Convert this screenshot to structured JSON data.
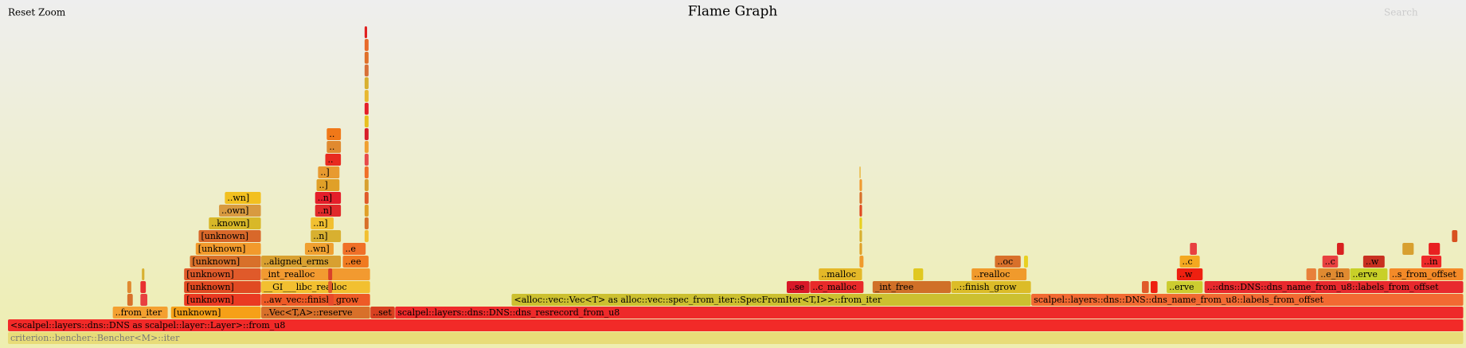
{
  "ui": {
    "reset_zoom": "Reset Zoom",
    "search": "Search"
  },
  "chart_data": {
    "type": "flame",
    "title": "Flame Graph",
    "frames": [
      {
        "depth": 0,
        "start": 0,
        "width": 100,
        "label": "criterion::bencher::Bencher<M>::iter",
        "color": "#e8dc78"
      },
      {
        "depth": 1,
        "start": 0,
        "width": 100,
        "label": "<scalpel::layers::dns::DNS as scalpel::layer::Layer>::from_u8",
        "color": "#f22a28"
      },
      {
        "depth": 2,
        "start": 7.2,
        "width": 3.8,
        "label": "..from_iter",
        "color": "#f4a030"
      },
      {
        "depth": 2,
        "start": 11.2,
        "width": 6.2,
        "label": "[unknown]",
        "color": "#f6a018"
      },
      {
        "depth": 2,
        "start": 17.4,
        "width": 7.5,
        "label": "..Vec<T,A>::reserve",
        "color": "#d8702a"
      },
      {
        "depth": 2,
        "start": 24.9,
        "width": 1.7,
        "label": "..set",
        "color": "#d84020"
      },
      {
        "depth": 2,
        "start": 26.6,
        "width": 73.4,
        "label": "scalpel::layers::dns::DNS::dns_resrecord_from_u8",
        "color": "#ee2a2a"
      },
      {
        "depth": 3,
        "start": 12.1,
        "width": 5.3,
        "label": "[unknown]",
        "color": "#ea3a22"
      },
      {
        "depth": 3,
        "start": 17.4,
        "width": 7.5,
        "label": "..aw_vec::finish_grow",
        "color": "#ee5a26"
      },
      {
        "depth": 3,
        "start": 34.6,
        "width": 35.7,
        "label": "<alloc::vec::Vec<T> as alloc::vec::spec_from_iter::SpecFromIter<T,I>>::from_iter",
        "color": "#ccc030"
      },
      {
        "depth": 3,
        "start": 70.3,
        "width": 29.7,
        "label": "scalpel::layers::dns::DNS::dns_name_from_u8::labels_from_offset",
        "color": "#f26a32"
      },
      {
        "depth": 4,
        "start": 12.1,
        "width": 5.3,
        "label": "[unknown]",
        "color": "#e04a22"
      },
      {
        "depth": 4,
        "start": 17.4,
        "width": 7.5,
        "label": "__GI___libc_realloc",
        "color": "#f2c030"
      },
      {
        "depth": 4,
        "start": 53.5,
        "width": 1.6,
        "label": "..se",
        "color": "#d81828"
      },
      {
        "depth": 4,
        "start": 55.1,
        "width": 3.7,
        "label": "..c_malloc",
        "color": "#e82a2a"
      },
      {
        "depth": 4,
        "start": 59.4,
        "width": 5.4,
        "label": "_int_free",
        "color": "#d07028"
      },
      {
        "depth": 4,
        "start": 64.8,
        "width": 5.5,
        "label": "..::finish_grow",
        "color": "#dcbc28"
      },
      {
        "depth": 4,
        "start": 79.6,
        "width": 2.5,
        "label": "..erve",
        "color": "#cccc30"
      },
      {
        "depth": 4,
        "start": 82.2,
        "width": 17.8,
        "label": "..::dns::DNS::dns_name_from_u8::labels_from_offset",
        "color": "#e82a2e"
      },
      {
        "depth": 5,
        "start": 12.1,
        "width": 5.3,
        "label": "[unknown]",
        "color": "#e05a2a"
      },
      {
        "depth": 5,
        "start": 17.4,
        "width": 7.5,
        "label": "_int_realloc",
        "color": "#f29a30"
      },
      {
        "depth": 5,
        "start": 55.7,
        "width": 3.0,
        "label": "..malloc",
        "color": "#e4b828"
      },
      {
        "depth": 5,
        "start": 66.2,
        "width": 3.8,
        "label": "..realloc",
        "color": "#f09a2c"
      },
      {
        "depth": 5,
        "start": 80.3,
        "width": 1.8,
        "label": "..w",
        "color": "#ee2010"
      },
      {
        "depth": 5,
        "start": 90.0,
        "width": 2.2,
        "label": "..e_in",
        "color": "#e08a30"
      },
      {
        "depth": 5,
        "start": 92.2,
        "width": 2.6,
        "label": "..erve",
        "color": "#c8d028"
      },
      {
        "depth": 5,
        "start": 94.9,
        "width": 5.1,
        "label": "..s_from_offset",
        "color": "#f48a28"
      },
      {
        "depth": 6,
        "start": 12.5,
        "width": 4.9,
        "label": "[unknown]",
        "color": "#d8702a"
      },
      {
        "depth": 6,
        "start": 17.4,
        "width": 5.5,
        "label": "..aligned_erms",
        "color": "#d8a030"
      },
      {
        "depth": 6,
        "start": 23.0,
        "width": 1.8,
        "label": "..ee",
        "color": "#f07a20"
      },
      {
        "depth": 6,
        "start": 67.8,
        "width": 1.8,
        "label": "..oc",
        "color": "#d8702a"
      },
      {
        "depth": 6,
        "start": 80.5,
        "width": 1.4,
        "label": "..c",
        "color": "#f4a820"
      },
      {
        "depth": 6,
        "start": 90.3,
        "width": 1.1,
        "label": "..c",
        "color": "#e84040"
      },
      {
        "depth": 6,
        "start": 93.1,
        "width": 1.5,
        "label": "..w",
        "color": "#c83020"
      },
      {
        "depth": 6,
        "start": 97.1,
        "width": 1.4,
        "label": "..in",
        "color": "#ee2a2a"
      },
      {
        "depth": 7,
        "start": 12.9,
        "width": 4.5,
        "label": "[unknown]",
        "color": "#f29a2c"
      },
      {
        "depth": 7,
        "start": 20.4,
        "width": 2.0,
        "label": "..wn]",
        "color": "#f0a030"
      },
      {
        "depth": 7,
        "start": 23.0,
        "width": 1.6,
        "label": "..e",
        "color": "#f07028"
      },
      {
        "depth": 8,
        "start": 13.1,
        "width": 4.3,
        "label": "[unknown]",
        "color": "#d8682a"
      },
      {
        "depth": 8,
        "start": 20.8,
        "width": 2.1,
        "label": "..n]",
        "color": "#d8b030"
      },
      {
        "depth": 9,
        "start": 13.8,
        "width": 3.6,
        "label": "..known]",
        "color": "#d8b828"
      },
      {
        "depth": 9,
        "start": 20.8,
        "width": 1.6,
        "label": "..n]",
        "color": "#f2c030"
      },
      {
        "depth": 10,
        "start": 14.5,
        "width": 2.9,
        "label": "..own]",
        "color": "#d89a40"
      },
      {
        "depth": 10,
        "start": 21.1,
        "width": 1.8,
        "label": "..n]",
        "color": "#e02a2a"
      },
      {
        "depth": 11,
        "start": 14.9,
        "width": 2.5,
        "label": "..wn]",
        "color": "#f2c020"
      },
      {
        "depth": 11,
        "start": 21.1,
        "width": 1.8,
        "label": "..n]",
        "color": "#e41e2a"
      },
      {
        "depth": 12,
        "start": 21.2,
        "width": 1.6,
        "label": "..]",
        "color": "#e0a028"
      },
      {
        "depth": 13,
        "start": 21.3,
        "width": 1.5,
        "label": "..]",
        "color": "#e89a30"
      },
      {
        "depth": 14,
        "start": 21.8,
        "width": 1.1,
        "label": "..",
        "color": "#e82a20"
      },
      {
        "depth": 15,
        "start": 21.9,
        "width": 1.0,
        "label": "..",
        "color": "#e08a30"
      },
      {
        "depth": 16,
        "start": 21.9,
        "width": 1.0,
        "label": "..",
        "color": "#f07818"
      },
      {
        "depth": 8,
        "start": 24.5,
        "width": 0.3,
        "label": null,
        "color": "#f2c030"
      },
      {
        "depth": 9,
        "start": 24.5,
        "width": 0.3,
        "label": null,
        "color": "#d8702a"
      },
      {
        "depth": 10,
        "start": 24.5,
        "width": 0.3,
        "label": null,
        "color": "#e0a028"
      },
      {
        "depth": 11,
        "start": 24.5,
        "width": 0.3,
        "label": null,
        "color": "#e05a2a"
      },
      {
        "depth": 12,
        "start": 24.5,
        "width": 0.3,
        "label": null,
        "color": "#d8a030"
      },
      {
        "depth": 13,
        "start": 24.5,
        "width": 0.3,
        "label": null,
        "color": "#f07028"
      },
      {
        "depth": 14,
        "start": 24.5,
        "width": 0.3,
        "label": null,
        "color": "#e84a4a"
      },
      {
        "depth": 15,
        "start": 24.5,
        "width": 0.3,
        "label": null,
        "color": "#f0a030"
      },
      {
        "depth": 16,
        "start": 24.5,
        "width": 0.3,
        "label": null,
        "color": "#d81e28"
      },
      {
        "depth": 17,
        "start": 24.5,
        "width": 0.3,
        "label": null,
        "color": "#e8c020"
      },
      {
        "depth": 18,
        "start": 24.5,
        "width": 0.3,
        "label": null,
        "color": "#e41e2a"
      },
      {
        "depth": 19,
        "start": 24.5,
        "width": 0.3,
        "label": null,
        "color": "#e8b830"
      },
      {
        "depth": 20,
        "start": 24.5,
        "width": 0.3,
        "label": null,
        "color": "#d8b030"
      },
      {
        "depth": 21,
        "start": 24.5,
        "width": 0.3,
        "label": null,
        "color": "#d87038"
      },
      {
        "depth": 22,
        "start": 24.5,
        "width": 0.3,
        "label": null,
        "color": "#e0702a"
      },
      {
        "depth": 23,
        "start": 24.5,
        "width": 0.3,
        "label": null,
        "color": "#e86a2a"
      },
      {
        "depth": 24,
        "start": 24.5,
        "width": 0.2,
        "label": null,
        "color": "#e02020"
      },
      {
        "depth": 6,
        "start": 58.5,
        "width": 0.3,
        "label": null,
        "color": "#f09a2c"
      },
      {
        "depth": 7,
        "start": 58.5,
        "width": 0.2,
        "label": null,
        "color": "#e0a028"
      },
      {
        "depth": 8,
        "start": 58.5,
        "width": 0.2,
        "label": null,
        "color": "#d8b030"
      },
      {
        "depth": 9,
        "start": 58.5,
        "width": 0.2,
        "label": null,
        "color": "#e8d020"
      },
      {
        "depth": 10,
        "start": 58.5,
        "width": 0.2,
        "label": null,
        "color": "#e04a22"
      },
      {
        "depth": 11,
        "start": 58.5,
        "width": 0.2,
        "label": null,
        "color": "#d8702a"
      },
      {
        "depth": 12,
        "start": 58.5,
        "width": 0.2,
        "label": null,
        "color": "#f09a30"
      },
      {
        "depth": 13,
        "start": 58.5,
        "width": 0.1,
        "label": null,
        "color": "#e8b030"
      },
      {
        "depth": 3,
        "start": 8.2,
        "width": 0.4,
        "label": null,
        "color": "#d8702a"
      },
      {
        "depth": 3,
        "start": 9.1,
        "width": 0.5,
        "label": null,
        "color": "#e84040"
      },
      {
        "depth": 4,
        "start": 8.2,
        "width": 0.3,
        "label": null,
        "color": "#e08a30"
      },
      {
        "depth": 4,
        "start": 9.1,
        "width": 0.4,
        "label": null,
        "color": "#e83030"
      },
      {
        "depth": 5,
        "start": 9.2,
        "width": 0.2,
        "label": null,
        "color": "#d8b030"
      },
      {
        "depth": 3,
        "start": 22.0,
        "width": 0.4,
        "label": null,
        "color": "#e84a2a"
      },
      {
        "depth": 4,
        "start": 22.0,
        "width": 0.3,
        "label": null,
        "color": "#e05a2a"
      },
      {
        "depth": 5,
        "start": 22.0,
        "width": 0.3,
        "label": null,
        "color": "#d8402a"
      },
      {
        "depth": 4,
        "start": 77.9,
        "width": 0.5,
        "label": null,
        "color": "#e05a2a"
      },
      {
        "depth": 4,
        "start": 78.5,
        "width": 0.5,
        "label": null,
        "color": "#ee2010"
      },
      {
        "depth": 5,
        "start": 89.2,
        "width": 0.7,
        "label": null,
        "color": "#e8803a"
      },
      {
        "depth": 5,
        "start": 62.2,
        "width": 0.7,
        "label": null,
        "color": "#e0c820"
      },
      {
        "depth": 6,
        "start": 69.8,
        "width": 0.3,
        "label": null,
        "color": "#e8d020"
      },
      {
        "depth": 7,
        "start": 81.2,
        "width": 0.5,
        "label": null,
        "color": "#e84040"
      },
      {
        "depth": 7,
        "start": 91.3,
        "width": 0.5,
        "label": null,
        "color": "#d82020"
      },
      {
        "depth": 7,
        "start": 95.8,
        "width": 0.8,
        "label": null,
        "color": "#d8a030"
      },
      {
        "depth": 7,
        "start": 97.6,
        "width": 0.8,
        "label": null,
        "color": "#e82020"
      },
      {
        "depth": 8,
        "start": 99.2,
        "width": 0.4,
        "label": null,
        "color": "#d85020"
      }
    ]
  }
}
